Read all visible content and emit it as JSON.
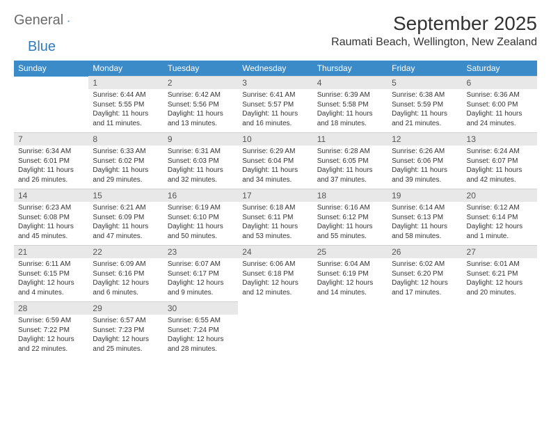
{
  "logo": {
    "text1": "General",
    "text2": "Blue"
  },
  "title": "September 2025",
  "location": "Raumati Beach, Wellington, New Zealand",
  "colors": {
    "headerBg": "#3b8bc9",
    "dayBg": "#e8e8e8",
    "text": "#333333"
  },
  "weekdays": [
    "Sunday",
    "Monday",
    "Tuesday",
    "Wednesday",
    "Thursday",
    "Friday",
    "Saturday"
  ],
  "weeks": [
    [
      null,
      {
        "n": "1",
        "sr": "Sunrise: 6:44 AM",
        "ss": "Sunset: 5:55 PM",
        "dl": "Daylight: 11 hours and 11 minutes."
      },
      {
        "n": "2",
        "sr": "Sunrise: 6:42 AM",
        "ss": "Sunset: 5:56 PM",
        "dl": "Daylight: 11 hours and 13 minutes."
      },
      {
        "n": "3",
        "sr": "Sunrise: 6:41 AM",
        "ss": "Sunset: 5:57 PM",
        "dl": "Daylight: 11 hours and 16 minutes."
      },
      {
        "n": "4",
        "sr": "Sunrise: 6:39 AM",
        "ss": "Sunset: 5:58 PM",
        "dl": "Daylight: 11 hours and 18 minutes."
      },
      {
        "n": "5",
        "sr": "Sunrise: 6:38 AM",
        "ss": "Sunset: 5:59 PM",
        "dl": "Daylight: 11 hours and 21 minutes."
      },
      {
        "n": "6",
        "sr": "Sunrise: 6:36 AM",
        "ss": "Sunset: 6:00 PM",
        "dl": "Daylight: 11 hours and 24 minutes."
      }
    ],
    [
      {
        "n": "7",
        "sr": "Sunrise: 6:34 AM",
        "ss": "Sunset: 6:01 PM",
        "dl": "Daylight: 11 hours and 26 minutes."
      },
      {
        "n": "8",
        "sr": "Sunrise: 6:33 AM",
        "ss": "Sunset: 6:02 PM",
        "dl": "Daylight: 11 hours and 29 minutes."
      },
      {
        "n": "9",
        "sr": "Sunrise: 6:31 AM",
        "ss": "Sunset: 6:03 PM",
        "dl": "Daylight: 11 hours and 32 minutes."
      },
      {
        "n": "10",
        "sr": "Sunrise: 6:29 AM",
        "ss": "Sunset: 6:04 PM",
        "dl": "Daylight: 11 hours and 34 minutes."
      },
      {
        "n": "11",
        "sr": "Sunrise: 6:28 AM",
        "ss": "Sunset: 6:05 PM",
        "dl": "Daylight: 11 hours and 37 minutes."
      },
      {
        "n": "12",
        "sr": "Sunrise: 6:26 AM",
        "ss": "Sunset: 6:06 PM",
        "dl": "Daylight: 11 hours and 39 minutes."
      },
      {
        "n": "13",
        "sr": "Sunrise: 6:24 AM",
        "ss": "Sunset: 6:07 PM",
        "dl": "Daylight: 11 hours and 42 minutes."
      }
    ],
    [
      {
        "n": "14",
        "sr": "Sunrise: 6:23 AM",
        "ss": "Sunset: 6:08 PM",
        "dl": "Daylight: 11 hours and 45 minutes."
      },
      {
        "n": "15",
        "sr": "Sunrise: 6:21 AM",
        "ss": "Sunset: 6:09 PM",
        "dl": "Daylight: 11 hours and 47 minutes."
      },
      {
        "n": "16",
        "sr": "Sunrise: 6:19 AM",
        "ss": "Sunset: 6:10 PM",
        "dl": "Daylight: 11 hours and 50 minutes."
      },
      {
        "n": "17",
        "sr": "Sunrise: 6:18 AM",
        "ss": "Sunset: 6:11 PM",
        "dl": "Daylight: 11 hours and 53 minutes."
      },
      {
        "n": "18",
        "sr": "Sunrise: 6:16 AM",
        "ss": "Sunset: 6:12 PM",
        "dl": "Daylight: 11 hours and 55 minutes."
      },
      {
        "n": "19",
        "sr": "Sunrise: 6:14 AM",
        "ss": "Sunset: 6:13 PM",
        "dl": "Daylight: 11 hours and 58 minutes."
      },
      {
        "n": "20",
        "sr": "Sunrise: 6:12 AM",
        "ss": "Sunset: 6:14 PM",
        "dl": "Daylight: 12 hours and 1 minute."
      }
    ],
    [
      {
        "n": "21",
        "sr": "Sunrise: 6:11 AM",
        "ss": "Sunset: 6:15 PM",
        "dl": "Daylight: 12 hours and 4 minutes."
      },
      {
        "n": "22",
        "sr": "Sunrise: 6:09 AM",
        "ss": "Sunset: 6:16 PM",
        "dl": "Daylight: 12 hours and 6 minutes."
      },
      {
        "n": "23",
        "sr": "Sunrise: 6:07 AM",
        "ss": "Sunset: 6:17 PM",
        "dl": "Daylight: 12 hours and 9 minutes."
      },
      {
        "n": "24",
        "sr": "Sunrise: 6:06 AM",
        "ss": "Sunset: 6:18 PM",
        "dl": "Daylight: 12 hours and 12 minutes."
      },
      {
        "n": "25",
        "sr": "Sunrise: 6:04 AM",
        "ss": "Sunset: 6:19 PM",
        "dl": "Daylight: 12 hours and 14 minutes."
      },
      {
        "n": "26",
        "sr": "Sunrise: 6:02 AM",
        "ss": "Sunset: 6:20 PM",
        "dl": "Daylight: 12 hours and 17 minutes."
      },
      {
        "n": "27",
        "sr": "Sunrise: 6:01 AM",
        "ss": "Sunset: 6:21 PM",
        "dl": "Daylight: 12 hours and 20 minutes."
      }
    ],
    [
      {
        "n": "28",
        "sr": "Sunrise: 6:59 AM",
        "ss": "Sunset: 7:22 PM",
        "dl": "Daylight: 12 hours and 22 minutes."
      },
      {
        "n": "29",
        "sr": "Sunrise: 6:57 AM",
        "ss": "Sunset: 7:23 PM",
        "dl": "Daylight: 12 hours and 25 minutes."
      },
      {
        "n": "30",
        "sr": "Sunrise: 6:55 AM",
        "ss": "Sunset: 7:24 PM",
        "dl": "Daylight: 12 hours and 28 minutes."
      },
      null,
      null,
      null,
      null
    ]
  ]
}
